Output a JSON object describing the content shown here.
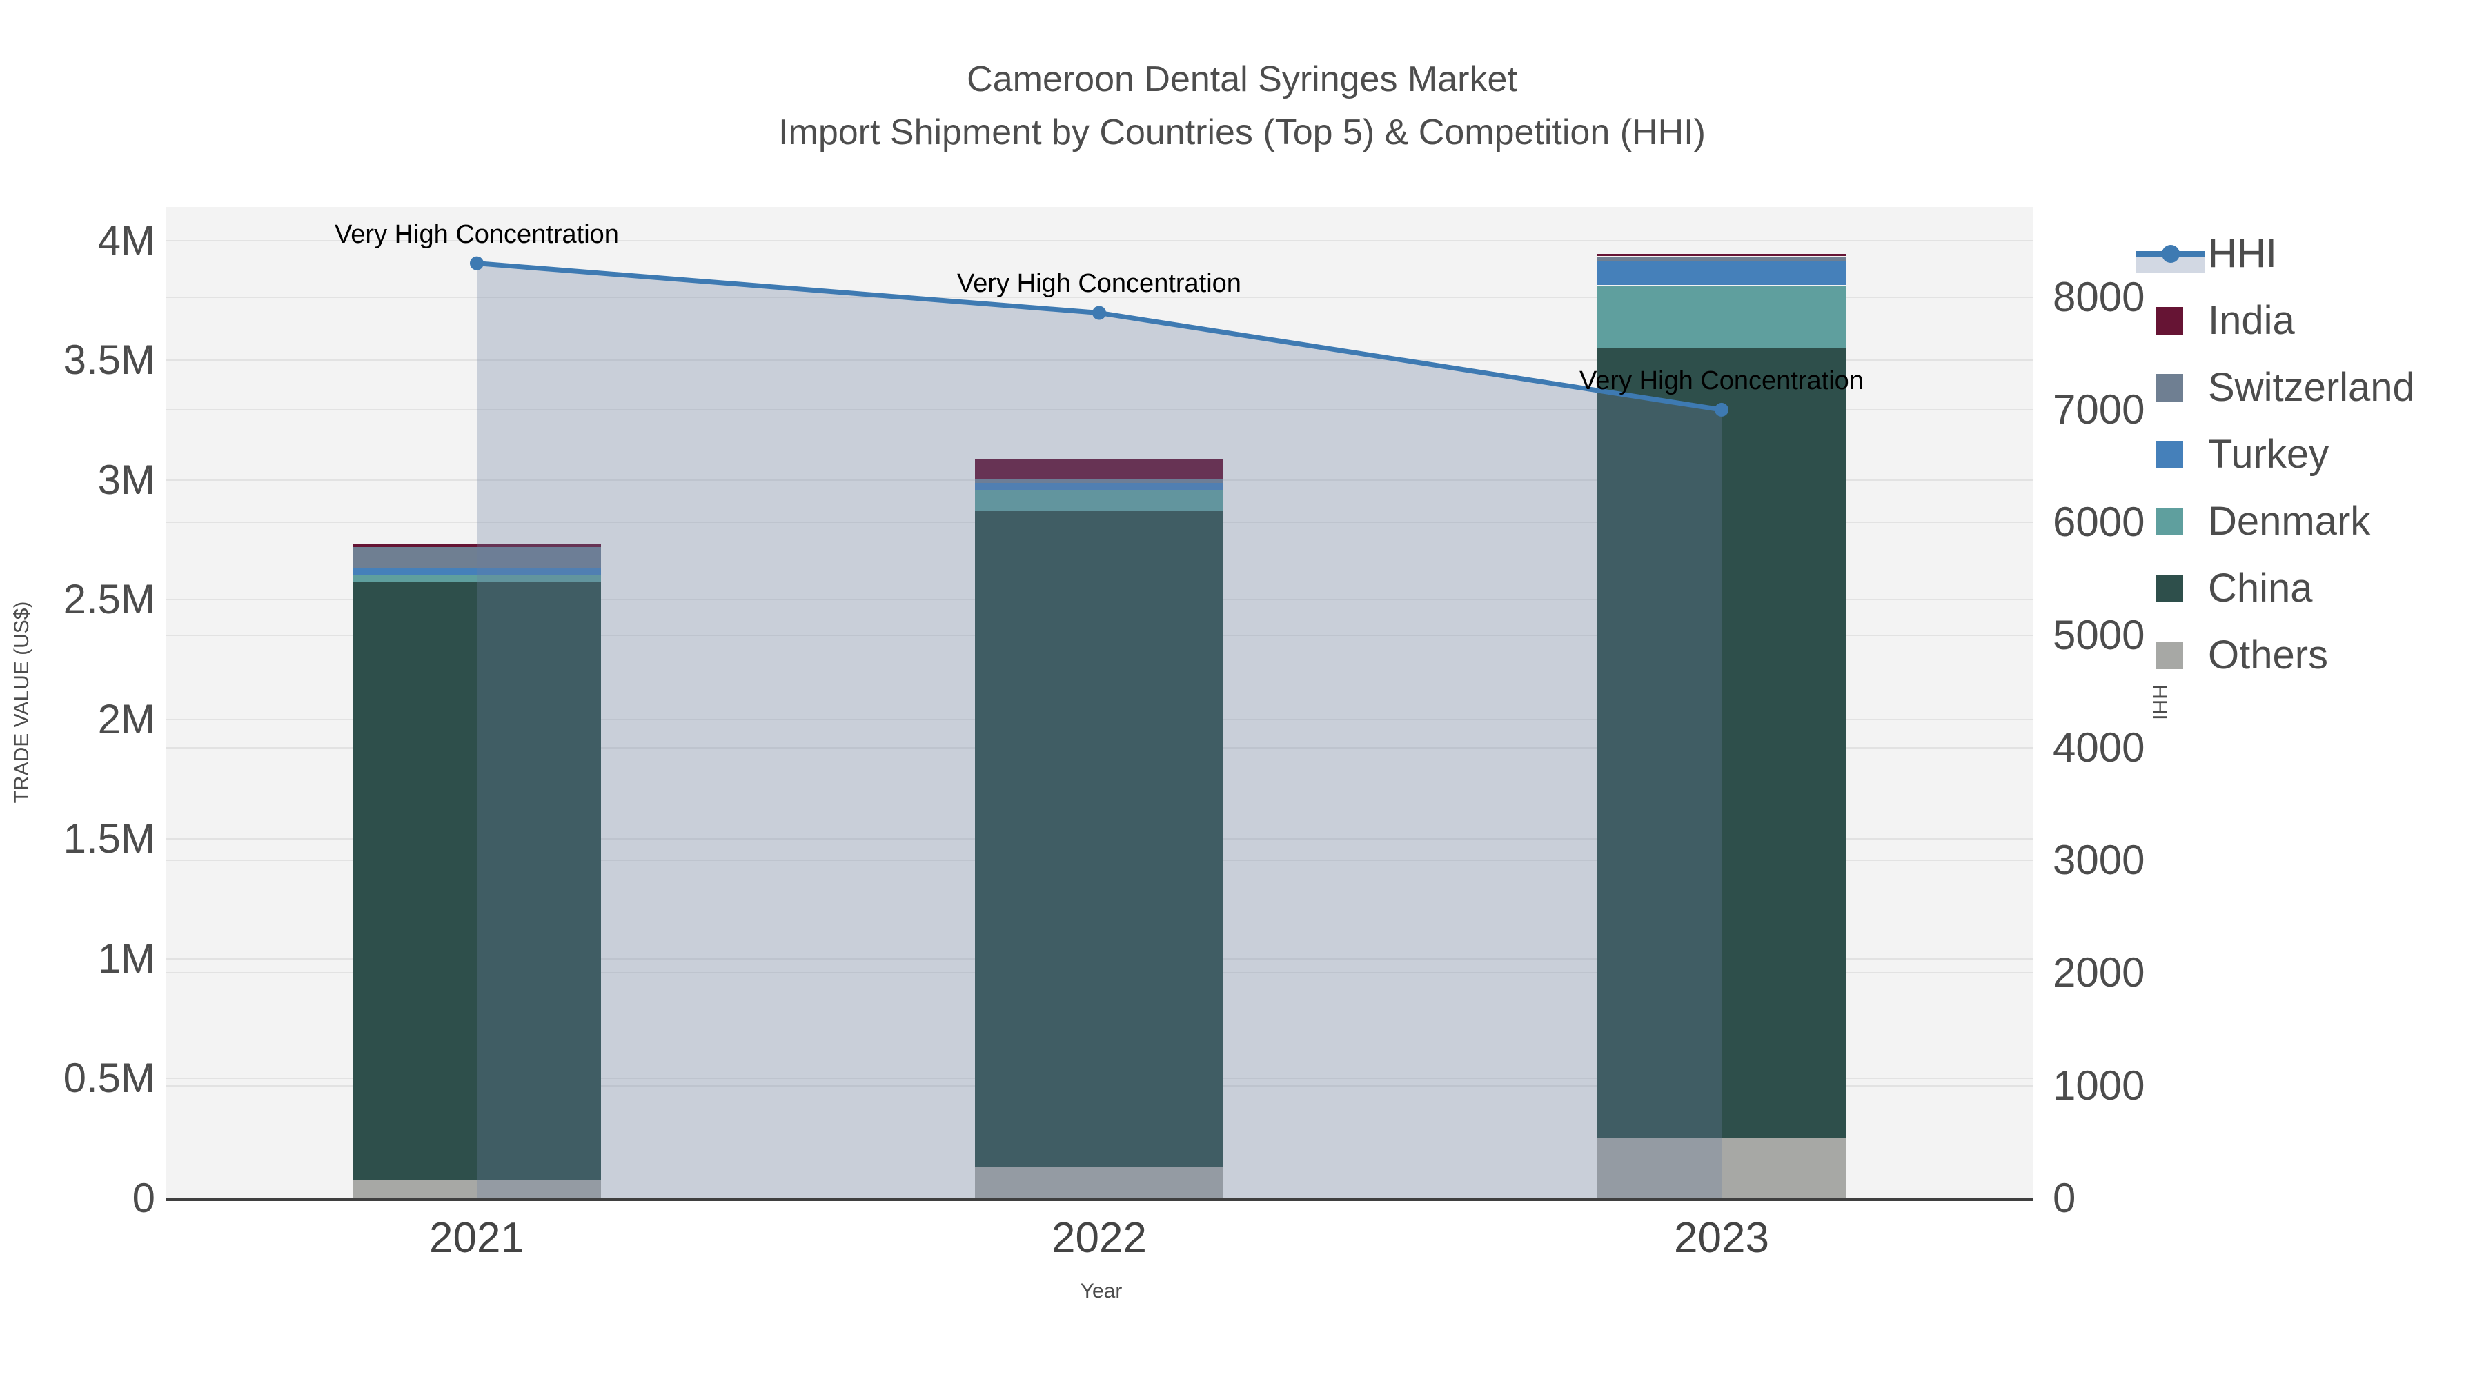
{
  "title": {
    "line1": "Cameroon Dental Syringes Market",
    "line2": "Import Shipment by Countries (Top 5) & Competition (HHI)"
  },
  "axes": {
    "x": {
      "title": "Year",
      "ticks": [
        "2021",
        "2022",
        "2023"
      ]
    },
    "y_left": {
      "title": "TRADE VALUE (US$)",
      "ticks": [
        {
          "v": 0,
          "label": "0"
        },
        {
          "v": 0.5,
          "label": "0.5M"
        },
        {
          "v": 1,
          "label": "1M"
        },
        {
          "v": 1.5,
          "label": "1.5M"
        },
        {
          "v": 2,
          "label": "2M"
        },
        {
          "v": 2.5,
          "label": "2.5M"
        },
        {
          "v": 3,
          "label": "3M"
        },
        {
          "v": 3.5,
          "label": "3.5M"
        },
        {
          "v": 4,
          "label": "4M"
        }
      ]
    },
    "y_right": {
      "title": "HHI",
      "ticks": [
        {
          "v": 0,
          "label": "0"
        },
        {
          "v": 1000,
          "label": "1000"
        },
        {
          "v": 2000,
          "label": "2000"
        },
        {
          "v": 3000,
          "label": "3000"
        },
        {
          "v": 4000,
          "label": "4000"
        },
        {
          "v": 5000,
          "label": "5000"
        },
        {
          "v": 6000,
          "label": "6000"
        },
        {
          "v": 7000,
          "label": "7000"
        },
        {
          "v": 8000,
          "label": "8000"
        }
      ]
    }
  },
  "legend": [
    {
      "label": "HHI",
      "type": "line"
    },
    {
      "label": "India",
      "type": "swatch",
      "color_key": "India"
    },
    {
      "label": "Switzerland",
      "type": "swatch",
      "color_key": "Switzerland"
    },
    {
      "label": "Turkey",
      "type": "swatch",
      "color_key": "Turkey"
    },
    {
      "label": "Denmark",
      "type": "swatch",
      "color_key": "Denmark"
    },
    {
      "label": "China",
      "type": "swatch",
      "color_key": "China"
    },
    {
      "label": "Others",
      "type": "swatch",
      "color_key": "Others"
    }
  ],
  "colors": {
    "India": "#661434",
    "Switzerland": "#6f7f92",
    "Turkey": "#4580ba",
    "Denmark": "#5f9f9e",
    "China": "#2e4f4b",
    "Others": "#a7a8a5",
    "hhi_line": "#3e7ab2",
    "area_fill": "rgba(105,125,160,0.30)",
    "legend_band": "#d2d8e3",
    "plot_bg": "#f3f3f3",
    "grid": "#e2e2e2"
  },
  "chart_data": {
    "type": "composite",
    "subtypes": [
      "stacked-bar",
      "line-with-area"
    ],
    "categories": [
      "2021",
      "2022",
      "2023"
    ],
    "bar_value_unit": "million US$",
    "bar_series_bottom_to_top": [
      {
        "name": "Others",
        "values": [
          0.075,
          0.13,
          0.25
        ]
      },
      {
        "name": "China",
        "values": [
          2.5,
          2.74,
          3.3
        ]
      },
      {
        "name": "Denmark",
        "values": [
          0.026,
          0.089,
          0.263
        ]
      },
      {
        "name": "Turkey",
        "values": [
          0.032,
          0.029,
          0.101
        ]
      },
      {
        "name": "Switzerland",
        "values": [
          0.086,
          0.017,
          0.02
        ]
      },
      {
        "name": "India",
        "values": [
          0.015,
          0.084,
          0.011
        ]
      }
    ],
    "bar_totals": [
      2.734,
      3.089,
      3.945
    ],
    "line_series": {
      "name": "HHI",
      "axis": "right",
      "values": [
        8300,
        7860,
        7000
      ],
      "area_to_zero": true
    },
    "annotations": [
      {
        "text": "Very High Concentration",
        "category": "2021"
      },
      {
        "text": "Very High Concentration",
        "category": "2022"
      },
      {
        "text": "Very High Concentration",
        "category": "2023"
      }
    ],
    "ylim_left_musd": [
      0,
      4.14
    ],
    "ylim_right_hhi": [
      0,
      8800
    ],
    "grid": true,
    "legend_position": "right"
  }
}
